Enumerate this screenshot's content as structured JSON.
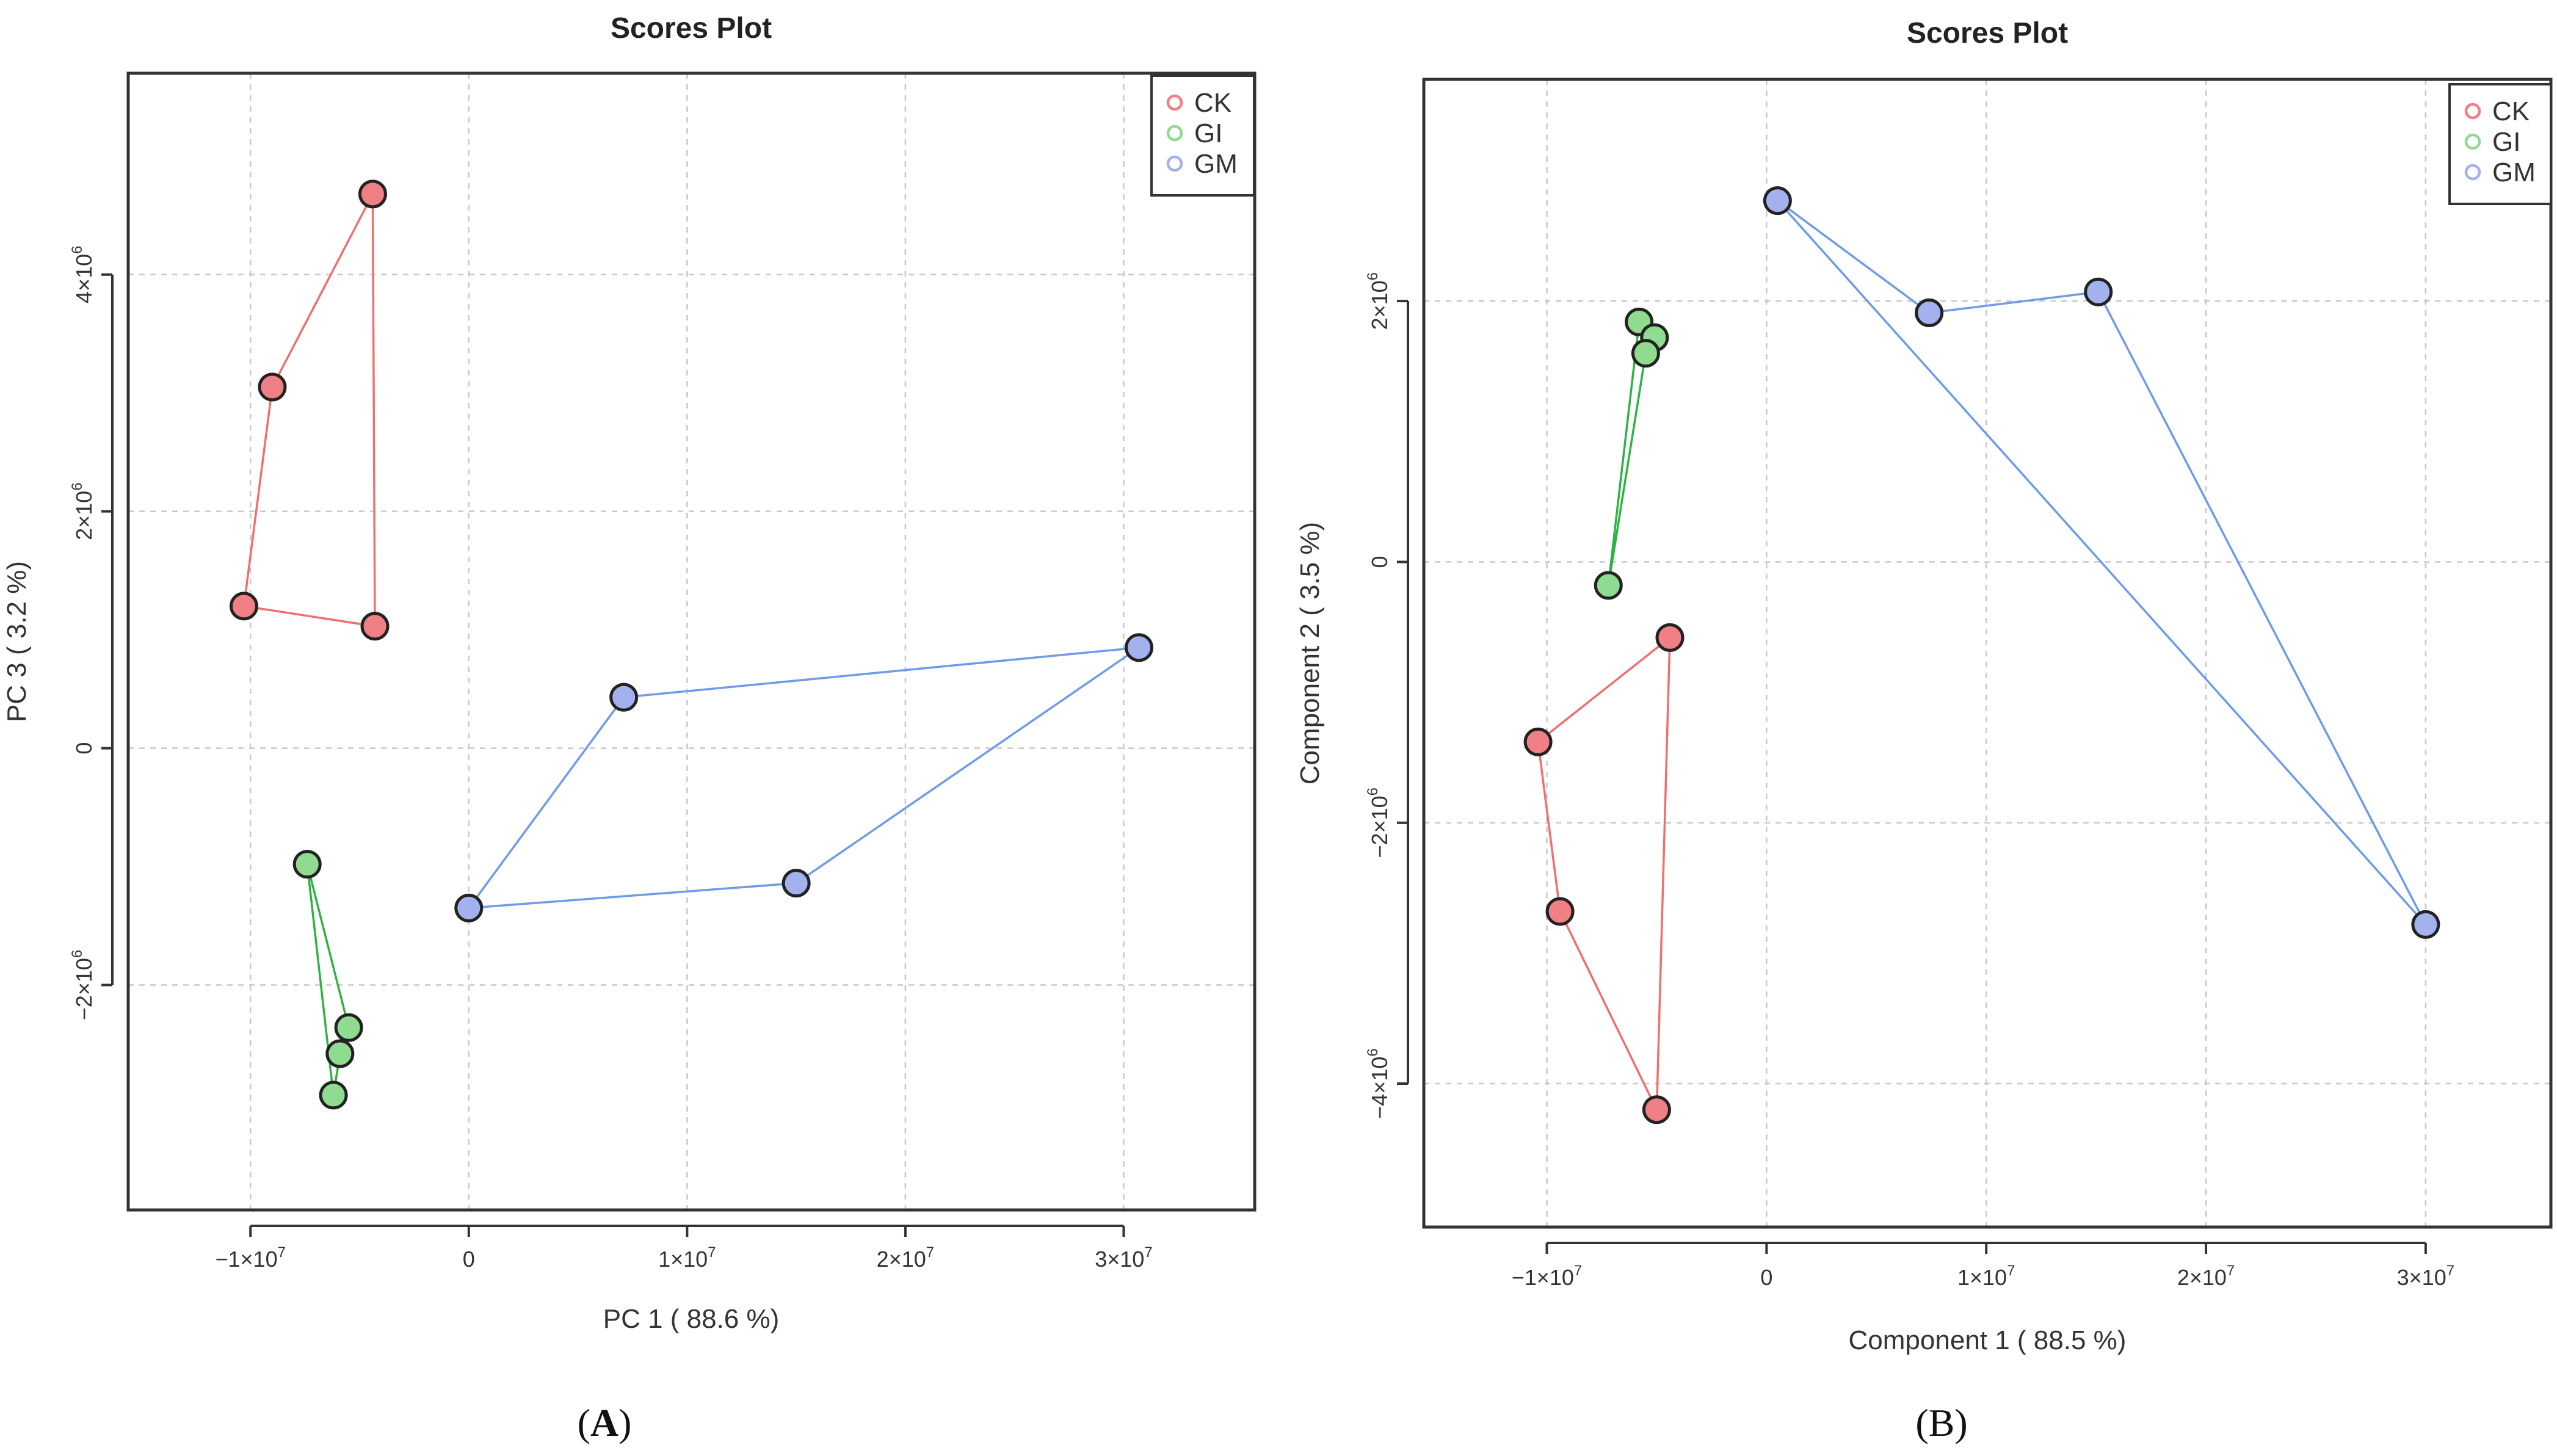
{
  "figure": {
    "panels": [
      {
        "open": "(",
        "letter": "A",
        "close": ")"
      },
      {
        "open": "(",
        "letter": "B",
        "close": ")"
      }
    ]
  },
  "legend_colors": {
    "CK": "#f07f86",
    "GI": "#8fdb8f",
    "GM": "#a3b2ee"
  },
  "line_colors": {
    "CK": "#ef6f6f",
    "GI": "#2fb244",
    "GM": "#6f9be8"
  },
  "chart_data": [
    {
      "type": "scatter",
      "title": "Scores Plot",
      "xlabel": "PC 1 ( 88.6 %)",
      "ylabel": "PC 3 ( 3.2 %)",
      "xlim": [
        -15600000,
        36000000
      ],
      "ylim": [
        -3900000,
        5700000
      ],
      "x_ticks": [
        {
          "value": -10000000,
          "base": "−1×10",
          "exp": "7"
        },
        {
          "value": 0,
          "base": "0",
          "exp": ""
        },
        {
          "value": 10000000,
          "base": "1×10",
          "exp": "7"
        },
        {
          "value": 20000000,
          "base": "2×10",
          "exp": "7"
        },
        {
          "value": 30000000,
          "base": "3×10",
          "exp": "7"
        }
      ],
      "y_ticks": [
        {
          "value": -2000000,
          "base": "−2×10",
          "exp": "6"
        },
        {
          "value": 0,
          "base": "0",
          "exp": ""
        },
        {
          "value": 2000000,
          "base": "2×10",
          "exp": "6"
        },
        {
          "value": 4000000,
          "base": "4×10",
          "exp": "6"
        }
      ],
      "grid": true,
      "legend": "top-right",
      "series": [
        {
          "name": "CK",
          "points": [
            [
              -4400000,
              4680000
            ],
            [
              -9000000,
              3050000
            ],
            [
              -10300000,
              1200000
            ],
            [
              -4300000,
              1030000
            ]
          ]
        },
        {
          "name": "GI",
          "points": [
            [
              -7400000,
              -980000
            ],
            [
              -5500000,
              -2360000
            ],
            [
              -5900000,
              -2580000
            ],
            [
              -6200000,
              -2930000
            ]
          ]
        },
        {
          "name": "GM",
          "points": [
            [
              30700000,
              850000
            ],
            [
              7100000,
              430000
            ],
            [
              0,
              -1350000
            ],
            [
              15000000,
              -1140000
            ]
          ]
        }
      ],
      "hulls": [
        {
          "name": "CK",
          "order": [
            0,
            1,
            2,
            3
          ]
        },
        {
          "name": "GI",
          "order": [
            0,
            1,
            2,
            3
          ]
        },
        {
          "name": "GM",
          "order": [
            0,
            1,
            2,
            3
          ]
        }
      ]
    },
    {
      "type": "scatter",
      "title": "Scores Plot",
      "xlabel": "Component 1 ( 88.5 %)",
      "ylabel": "Component 2 ( 3.5 %)",
      "xlim": [
        -15600000,
        35700000
      ],
      "ylim": [
        -5100000,
        3700000
      ],
      "x_ticks": [
        {
          "value": -10000000,
          "base": "−1×10",
          "exp": "7"
        },
        {
          "value": 0,
          "base": "0",
          "exp": ""
        },
        {
          "value": 10000000,
          "base": "1×10",
          "exp": "7"
        },
        {
          "value": 20000000,
          "base": "2×10",
          "exp": "7"
        },
        {
          "value": 30000000,
          "base": "3×10",
          "exp": "7"
        }
      ],
      "y_ticks": [
        {
          "value": -4000000,
          "base": "−4×10",
          "exp": "6"
        },
        {
          "value": -2000000,
          "base": "−2×10",
          "exp": "6"
        },
        {
          "value": 0,
          "base": "0",
          "exp": ""
        },
        {
          "value": 2000000,
          "base": "2×10",
          "exp": "6"
        }
      ],
      "grid": true,
      "legend": "top-right",
      "series": [
        {
          "name": "CK",
          "points": [
            [
              -4400000,
              -580000
            ],
            [
              -10400000,
              -1380000
            ],
            [
              -9400000,
              -2680000
            ],
            [
              -5000000,
              -4200000
            ]
          ]
        },
        {
          "name": "GI",
          "points": [
            [
              -5800000,
              1840000
            ],
            [
              -5100000,
              1720000
            ],
            [
              -5500000,
              1600000
            ],
            [
              -7200000,
              -180000
            ]
          ]
        },
        {
          "name": "GM",
          "points": [
            [
              500000,
              2770000
            ],
            [
              7400000,
              1910000
            ],
            [
              15100000,
              2070000
            ],
            [
              30000000,
              -2780000
            ]
          ]
        }
      ],
      "hulls": [
        {
          "name": "CK",
          "order": [
            0,
            1,
            2,
            3
          ]
        },
        {
          "name": "GI",
          "order": [
            0,
            1,
            2,
            3
          ]
        },
        {
          "name": "GM",
          "order": [
            0,
            1,
            2,
            3
          ]
        }
      ]
    }
  ]
}
